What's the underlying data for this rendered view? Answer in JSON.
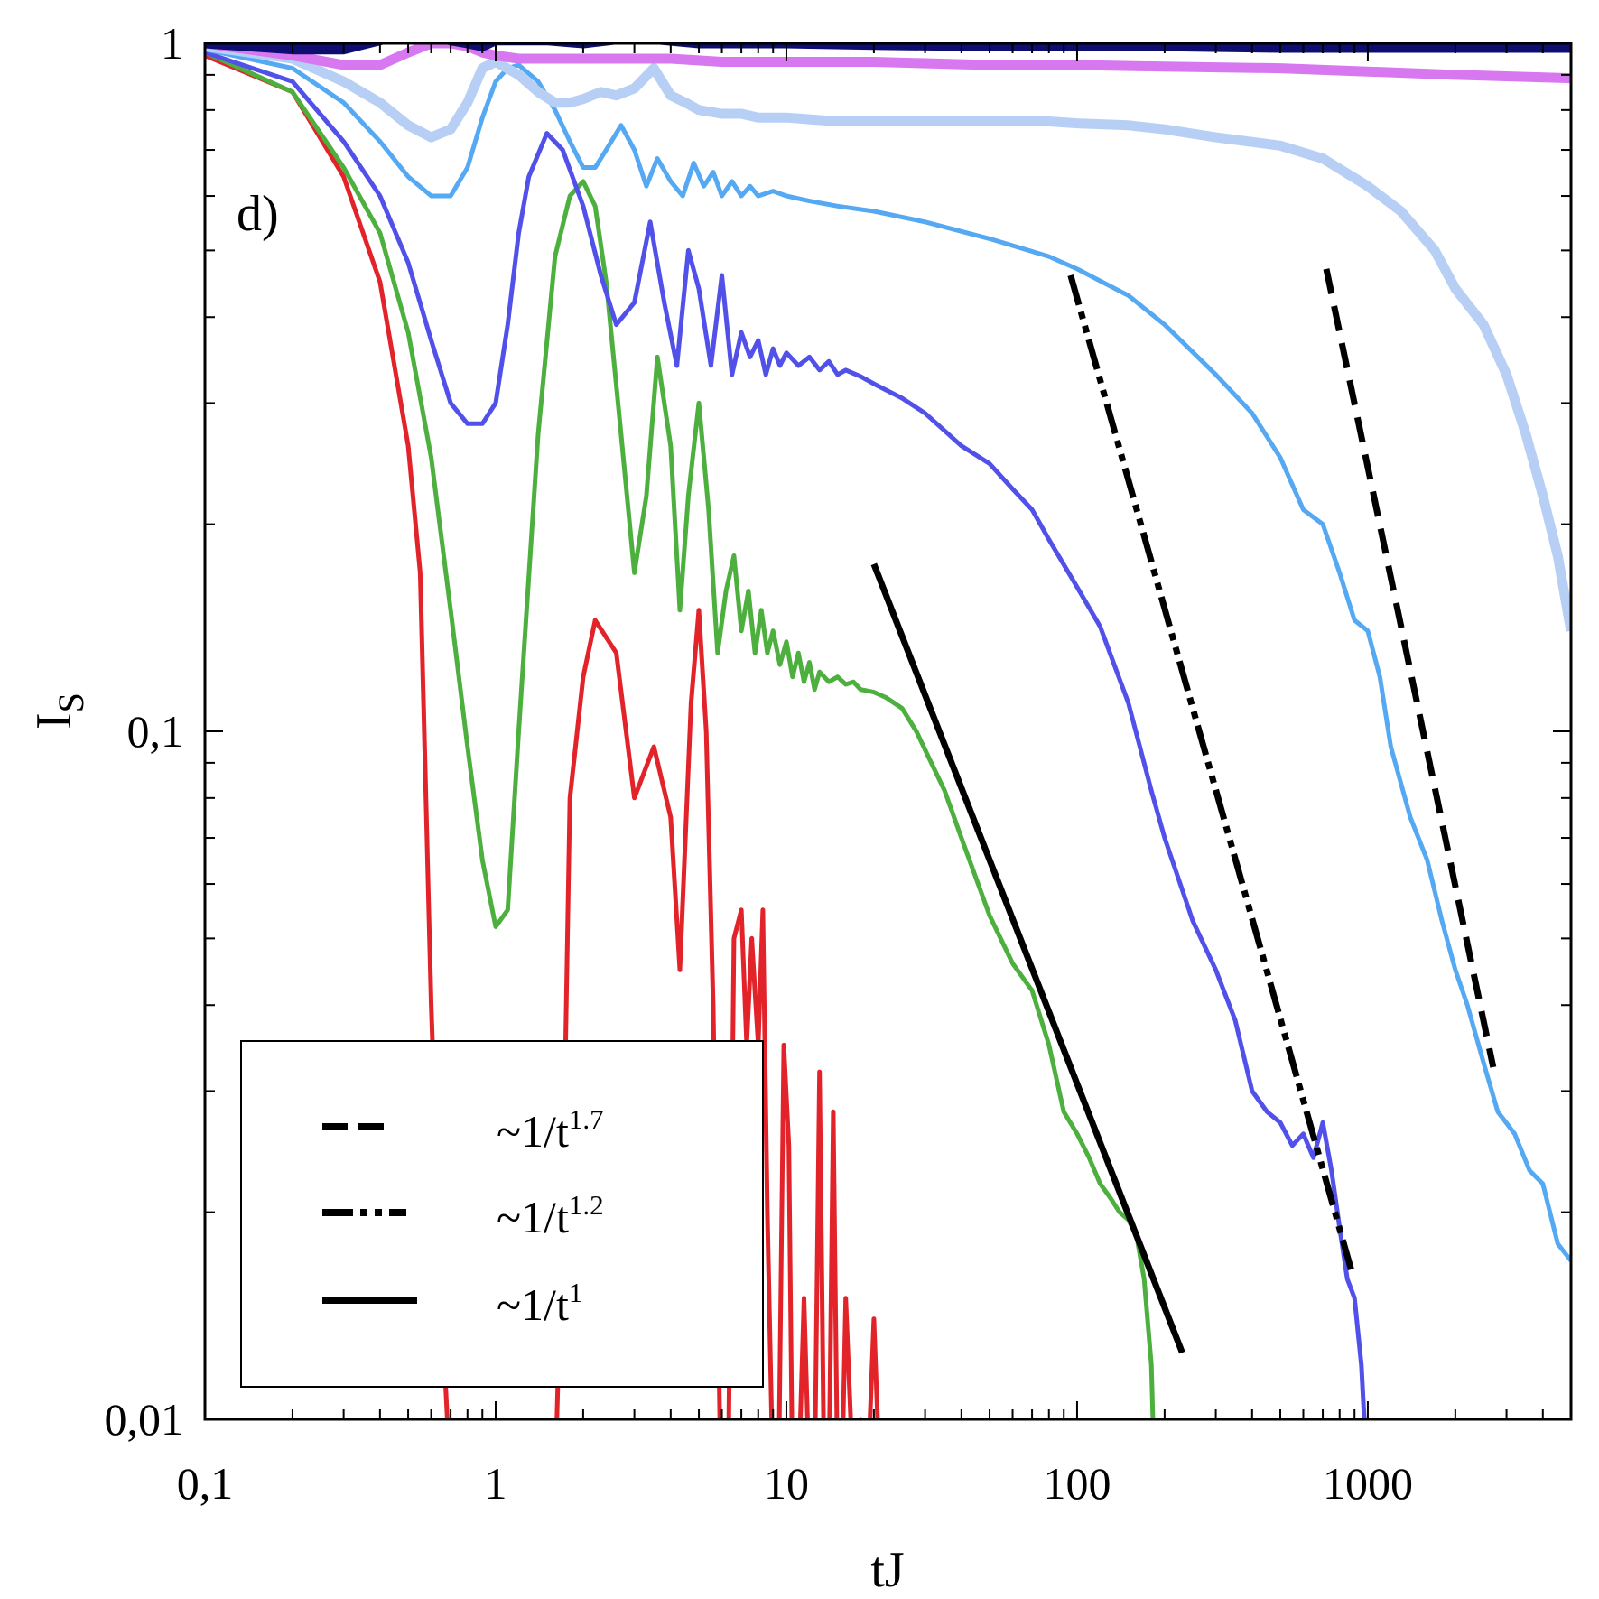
{
  "chart_data": {
    "type": "line",
    "panel_label": "d)",
    "xlabel": "tJ",
    "ylabel": "I",
    "ylabel_sub": "S",
    "x_scale": "log",
    "y_scale": "log",
    "xlim": [
      0.1,
      5000
    ],
    "ylim": [
      0.01,
      1
    ],
    "x_ticks": [
      {
        "v": 0.1,
        "label": "0,1"
      },
      {
        "v": 1,
        "label": "1"
      },
      {
        "v": 10,
        "label": "10"
      },
      {
        "v": 100,
        "label": "100"
      },
      {
        "v": 1000,
        "label": "1000"
      }
    ],
    "y_ticks": [
      {
        "v": 0.01,
        "label": "0,01"
      },
      {
        "v": 0.1,
        "label": "0,1"
      },
      {
        "v": 1,
        "label": "1"
      }
    ],
    "legend": {
      "placement": "bottom-left",
      "entries": [
        {
          "style": "dashed",
          "text": "~1/t",
          "exp": "1.7"
        },
        {
          "style": "dashdotdot",
          "text": "~1/t",
          "exp": "1.2"
        },
        {
          "style": "solid",
          "text": "~1/t",
          "exp": "1"
        }
      ]
    },
    "fits": [
      {
        "style": "solid",
        "x": [
          20,
          230
        ],
        "y": [
          0.175,
          0.0125
        ]
      },
      {
        "style": "dashdotdot",
        "x": [
          95,
          880
        ],
        "y": [
          0.46,
          0.0164
        ]
      },
      {
        "style": "dashed",
        "x": [
          720,
          2700
        ],
        "y": [
          0.47,
          0.0325
        ]
      }
    ],
    "series": [
      {
        "color": "#e2232a",
        "width": 5,
        "x": [
          0.1,
          0.2,
          0.3,
          0.4,
          0.5,
          0.55,
          0.6,
          0.65,
          0.7,
          1.6,
          1.7,
          1.8,
          2.0,
          2.2,
          2.6,
          3.0,
          3.5,
          4.0,
          4.3,
          4.7,
          5.0,
          5.3,
          5.6,
          5.9,
          6.1,
          6.3,
          6.6,
          7.0,
          7.3,
          7.6,
          8.0,
          8.3,
          8.6,
          9.0,
          9.4,
          9.8,
          10.2,
          10.5,
          11,
          11.5,
          12,
          12.5,
          13,
          13.5,
          14,
          14.5,
          15,
          15.5,
          16,
          17,
          18,
          19,
          20,
          21,
          22
        ],
        "y": [
          0.96,
          0.85,
          0.64,
          0.45,
          0.26,
          0.17,
          0.04,
          0.015,
          0.008,
          0.008,
          0.02,
          0.08,
          0.12,
          0.145,
          0.13,
          0.08,
          0.095,
          0.075,
          0.045,
          0.11,
          0.15,
          0.1,
          0.04,
          0.01,
          0.008,
          0.008,
          0.05,
          0.055,
          0.035,
          0.05,
          0.035,
          0.055,
          0.02,
          0.008,
          0.008,
          0.035,
          0.025,
          0.008,
          0.008,
          0.015,
          0.008,
          0.008,
          0.032,
          0.008,
          0.008,
          0.028,
          0.008,
          0.008,
          0.015,
          0.008,
          0.01,
          0.008,
          0.014,
          0.008,
          0.01
        ]
      },
      {
        "color": "#4caf3e",
        "width": 5,
        "x": [
          0.1,
          0.2,
          0.3,
          0.4,
          0.5,
          0.6,
          0.7,
          0.8,
          0.9,
          1.0,
          1.1,
          1.2,
          1.4,
          1.6,
          1.8,
          2.0,
          2.2,
          2.4,
          2.7,
          3.0,
          3.3,
          3.6,
          4.0,
          4.3,
          4.6,
          5.0,
          5.4,
          5.8,
          6.2,
          6.6,
          7.0,
          7.4,
          7.8,
          8.2,
          8.6,
          9.0,
          9.5,
          10,
          10.5,
          11,
          11.5,
          12,
          12.5,
          13,
          14,
          15,
          16,
          17,
          18,
          20,
          22,
          25,
          28,
          30,
          35,
          40,
          50,
          60,
          70,
          80,
          90,
          100,
          110,
          120,
          130,
          140,
          150,
          160,
          170,
          180,
          185,
          190,
          200,
          210,
          220
        ],
        "y": [
          0.97,
          0.85,
          0.66,
          0.53,
          0.38,
          0.25,
          0.15,
          0.095,
          0.065,
          0.052,
          0.055,
          0.1,
          0.27,
          0.49,
          0.6,
          0.63,
          0.58,
          0.45,
          0.27,
          0.17,
          0.22,
          0.35,
          0.26,
          0.15,
          0.22,
          0.3,
          0.21,
          0.13,
          0.16,
          0.18,
          0.14,
          0.16,
          0.13,
          0.15,
          0.13,
          0.14,
          0.125,
          0.135,
          0.12,
          0.13,
          0.118,
          0.126,
          0.115,
          0.122,
          0.118,
          0.12,
          0.117,
          0.118,
          0.115,
          0.114,
          0.112,
          0.108,
          0.1,
          0.094,
          0.082,
          0.07,
          0.054,
          0.046,
          0.042,
          0.035,
          0.028,
          0.026,
          0.024,
          0.022,
          0.021,
          0.02,
          0.0195,
          0.0185,
          0.016,
          0.012,
          0.008,
          0.008,
          0.008,
          0.008,
          0.008
        ]
      },
      {
        "color": "#5151ea",
        "width": 5,
        "x": [
          0.1,
          0.2,
          0.3,
          0.4,
          0.5,
          0.6,
          0.7,
          0.8,
          0.9,
          1.0,
          1.1,
          1.2,
          1.3,
          1.5,
          1.7,
          2.0,
          2.3,
          2.6,
          3.0,
          3.4,
          3.8,
          4.2,
          4.6,
          5.0,
          5.5,
          6,
          6.5,
          7,
          7.5,
          8,
          8.5,
          9,
          9.5,
          10,
          11,
          12,
          13,
          14,
          15,
          16,
          18,
          20,
          25,
          30,
          40,
          50,
          60,
          70,
          80,
          100,
          120,
          150,
          180,
          200,
          250,
          300,
          350,
          400,
          450,
          500,
          550,
          600,
          650,
          700,
          750,
          800,
          850,
          900,
          950,
          1000,
          1100,
          1200
        ],
        "y": [
          0.97,
          0.88,
          0.72,
          0.6,
          0.48,
          0.37,
          0.3,
          0.28,
          0.28,
          0.3,
          0.39,
          0.53,
          0.64,
          0.74,
          0.7,
          0.58,
          0.46,
          0.39,
          0.42,
          0.55,
          0.42,
          0.34,
          0.5,
          0.44,
          0.34,
          0.46,
          0.33,
          0.38,
          0.35,
          0.37,
          0.33,
          0.36,
          0.34,
          0.355,
          0.34,
          0.35,
          0.335,
          0.345,
          0.33,
          0.335,
          0.328,
          0.32,
          0.305,
          0.29,
          0.26,
          0.245,
          0.225,
          0.21,
          0.19,
          0.162,
          0.142,
          0.11,
          0.082,
          0.07,
          0.053,
          0.045,
          0.038,
          0.03,
          0.028,
          0.027,
          0.025,
          0.026,
          0.024,
          0.027,
          0.023,
          0.019,
          0.016,
          0.015,
          0.012,
          0.008,
          0.008,
          0.008
        ]
      },
      {
        "color": "#55a8f2",
        "width": 5,
        "x": [
          0.1,
          0.2,
          0.3,
          0.4,
          0.5,
          0.6,
          0.7,
          0.8,
          0.9,
          1.0,
          1.1,
          1.2,
          1.4,
          1.6,
          1.8,
          2.0,
          2.2,
          2.4,
          2.7,
          3.0,
          3.3,
          3.6,
          4.0,
          4.4,
          4.8,
          5.2,
          5.6,
          6,
          6.5,
          7,
          7.5,
          8,
          9,
          10,
          12,
          15,
          20,
          30,
          50,
          80,
          100,
          150,
          200,
          300,
          400,
          500,
          600,
          700,
          800,
          900,
          1000,
          1100,
          1200,
          1400,
          1600,
          1800,
          2000,
          2200,
          2500,
          2800,
          3200,
          3600,
          4000,
          4500,
          5000
        ],
        "y": [
          0.98,
          0.92,
          0.82,
          0.72,
          0.64,
          0.6,
          0.6,
          0.66,
          0.78,
          0.88,
          0.92,
          0.93,
          0.88,
          0.8,
          0.72,
          0.66,
          0.66,
          0.7,
          0.76,
          0.7,
          0.62,
          0.68,
          0.63,
          0.6,
          0.67,
          0.62,
          0.65,
          0.6,
          0.63,
          0.6,
          0.62,
          0.6,
          0.61,
          0.6,
          0.59,
          0.58,
          0.57,
          0.55,
          0.52,
          0.49,
          0.47,
          0.43,
          0.39,
          0.33,
          0.29,
          0.25,
          0.21,
          0.2,
          0.17,
          0.145,
          0.14,
          0.12,
          0.095,
          0.075,
          0.065,
          0.053,
          0.045,
          0.04,
          0.033,
          0.028,
          0.026,
          0.023,
          0.022,
          0.018,
          0.017
        ]
      },
      {
        "color": "#b8cff5",
        "width": 11,
        "x": [
          0.1,
          0.2,
          0.3,
          0.4,
          0.5,
          0.6,
          0.7,
          0.8,
          0.9,
          1.0,
          1.2,
          1.4,
          1.6,
          1.8,
          2.0,
          2.3,
          2.6,
          3.0,
          3.5,
          4.0,
          4.5,
          5.0,
          6,
          7,
          8,
          10,
          15,
          20,
          30,
          50,
          80,
          100,
          150,
          200,
          300,
          500,
          700,
          1000,
          1300,
          1700,
          2000,
          2500,
          3000,
          3500,
          4000,
          4500,
          5000
        ],
        "y": [
          0.99,
          0.95,
          0.88,
          0.82,
          0.76,
          0.73,
          0.75,
          0.82,
          0.92,
          0.94,
          0.9,
          0.85,
          0.82,
          0.82,
          0.83,
          0.85,
          0.84,
          0.86,
          0.92,
          0.84,
          0.82,
          0.8,
          0.79,
          0.79,
          0.78,
          0.78,
          0.77,
          0.77,
          0.77,
          0.77,
          0.77,
          0.765,
          0.76,
          0.75,
          0.73,
          0.71,
          0.68,
          0.62,
          0.57,
          0.5,
          0.44,
          0.39,
          0.33,
          0.27,
          0.22,
          0.18,
          0.14
        ]
      },
      {
        "color": "#d878f0",
        "width": 11,
        "x": [
          0.1,
          0.2,
          0.3,
          0.4,
          0.5,
          0.6,
          0.7,
          0.8,
          0.9,
          1.0,
          1.2,
          1.5,
          2,
          2.5,
          3,
          4,
          6,
          10,
          20,
          50,
          100,
          200,
          500,
          1000,
          2000,
          5000
        ],
        "y": [
          1.0,
          0.96,
          0.93,
          0.93,
          0.97,
          1.0,
          1.0,
          0.99,
          0.97,
          0.96,
          0.95,
          0.95,
          0.95,
          0.95,
          0.95,
          0.95,
          0.94,
          0.94,
          0.94,
          0.93,
          0.93,
          0.925,
          0.92,
          0.91,
          0.9,
          0.89
        ]
      },
      {
        "color": "#0d0d72",
        "width": 11,
        "x": [
          0.1,
          0.2,
          0.3,
          0.4,
          0.5,
          0.6,
          0.7,
          0.8,
          0.9,
          1.0,
          1.5,
          2,
          3,
          5,
          10,
          20,
          50,
          100,
          200,
          500,
          1000,
          2000,
          5000
        ],
        "y": [
          1.0,
          0.98,
          0.98,
          1.01,
          1.04,
          1.03,
          1.01,
          1.0,
          0.99,
          1.01,
          1.01,
          1.0,
          1.02,
          1.0,
          1.0,
          0.995,
          0.99,
          0.99,
          0.99,
          0.985,
          0.985,
          0.985,
          0.985
        ]
      }
    ]
  }
}
